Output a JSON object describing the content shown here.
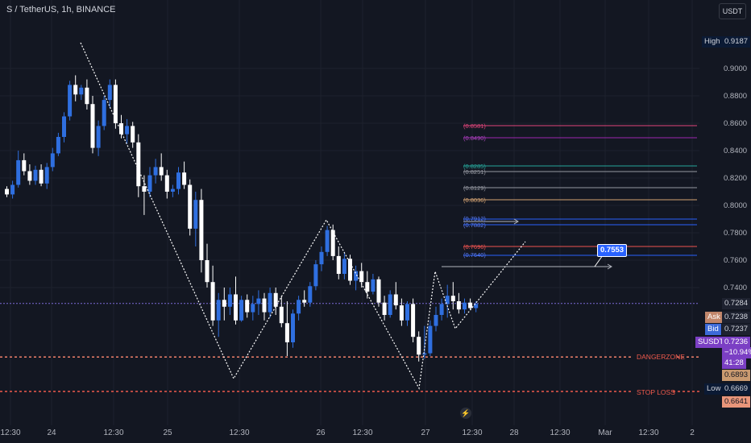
{
  "symbol": "S / TetherUS, 1h, BINANCE",
  "currency_button": "USDT",
  "colors": {
    "up": "#2f6fe0",
    "down": "#ffffff",
    "grid": "#1e222d",
    "pattern": "#ffffff",
    "current": "#7c6bd8",
    "danger": "#f0806b",
    "stoploss": "#f05a4c"
  },
  "y_axis": {
    "ticks": [
      "0.9000",
      "0.8800",
      "0.8600",
      "0.8400",
      "0.8200",
      "0.8000",
      "0.7800",
      "0.7600",
      "0.7400"
    ]
  },
  "x_axis": {
    "ticks": [
      "12:30",
      "24",
      "12:30",
      "25",
      "12:30",
      "26",
      "12:30",
      "27",
      "12:30",
      "28",
      "12:30",
      "Mar",
      "12:30",
      "2"
    ]
  },
  "price_tags": {
    "high_label": "High",
    "high_value": "0.9187",
    "last_value": "0.7284",
    "ask_label": "Ask",
    "ask_value": "0.7238",
    "bid_label": "Bid",
    "bid_value": "0.7237",
    "symbol_label": "SUSDT",
    "symbol_value": "0.7236",
    "change": "−10.94%",
    "countdown": "41:28",
    "danger_value": "0.6893",
    "low_label": "Low",
    "low_value": "0.6669",
    "stop_value": "0.6641"
  },
  "annotations": {
    "danger": "DANGERZONE",
    "stop": "STOP LOSS",
    "target": "0.7553"
  },
  "levels": [
    {
      "label": "(0.8581)",
      "color": "#e0457a"
    },
    {
      "label": "(0.8490)",
      "color": "#9c27b0"
    },
    {
      "label": "(0.8285)",
      "color": "#26a69a"
    },
    {
      "label": "(0.8251)",
      "color": "#9598a1"
    },
    {
      "label": "(0.8129)",
      "color": "#9598a1"
    },
    {
      "label": "(0.8036)",
      "color": "#d4a373"
    },
    {
      "label": "(0.7912)",
      "color": "#2962ff"
    },
    {
      "label": "(0.7882)",
      "color": "#2962ff"
    },
    {
      "label": "(0.7696)",
      "color": "#ef5350"
    },
    {
      "label": "(0.7640)",
      "color": "#2962ff"
    }
  ],
  "chart_data": {
    "type": "candlestick",
    "interval": "1h",
    "ylim": [
      0.6641,
      0.9187
    ],
    "ohlc": [
      [
        0.812,
        0.814,
        0.806,
        0.808
      ],
      [
        0.808,
        0.818,
        0.805,
        0.815
      ],
      [
        0.815,
        0.84,
        0.813,
        0.833
      ],
      [
        0.833,
        0.838,
        0.822,
        0.825
      ],
      [
        0.825,
        0.83,
        0.815,
        0.818
      ],
      [
        0.818,
        0.829,
        0.815,
        0.826
      ],
      [
        0.826,
        0.83,
        0.814,
        0.816
      ],
      [
        0.816,
        0.831,
        0.812,
        0.828
      ],
      [
        0.828,
        0.842,
        0.825,
        0.838
      ],
      [
        0.838,
        0.853,
        0.836,
        0.85
      ],
      [
        0.85,
        0.868,
        0.846,
        0.865
      ],
      [
        0.865,
        0.891,
        0.862,
        0.888
      ],
      [
        0.888,
        0.895,
        0.876,
        0.881
      ],
      [
        0.881,
        0.888,
        0.877,
        0.886
      ],
      [
        0.886,
        0.892,
        0.87,
        0.874
      ],
      [
        0.874,
        0.88,
        0.838,
        0.842
      ],
      [
        0.842,
        0.862,
        0.836,
        0.858
      ],
      [
        0.858,
        0.88,
        0.855,
        0.877
      ],
      [
        0.877,
        0.892,
        0.871,
        0.888
      ],
      [
        0.888,
        0.892,
        0.856,
        0.86
      ],
      [
        0.86,
        0.866,
        0.849,
        0.852
      ],
      [
        0.852,
        0.863,
        0.845,
        0.858
      ],
      [
        0.858,
        0.861,
        0.842,
        0.846
      ],
      [
        0.846,
        0.852,
        0.806,
        0.814
      ],
      [
        0.814,
        0.822,
        0.793,
        0.81
      ],
      [
        0.81,
        0.828,
        0.806,
        0.822
      ],
      [
        0.822,
        0.834,
        0.816,
        0.828
      ],
      [
        0.828,
        0.838,
        0.818,
        0.822
      ],
      [
        0.822,
        0.826,
        0.805,
        0.81
      ],
      [
        0.81,
        0.815,
        0.806,
        0.812
      ],
      [
        0.812,
        0.828,
        0.808,
        0.824
      ],
      [
        0.824,
        0.832,
        0.812,
        0.815
      ],
      [
        0.815,
        0.819,
        0.778,
        0.783
      ],
      [
        0.783,
        0.81,
        0.77,
        0.804
      ],
      [
        0.804,
        0.812,
        0.751,
        0.76
      ],
      [
        0.76,
        0.772,
        0.74,
        0.744
      ],
      [
        0.744,
        0.756,
        0.712,
        0.716
      ],
      [
        0.716,
        0.736,
        0.704,
        0.731
      ],
      [
        0.731,
        0.74,
        0.716,
        0.726
      ],
      [
        0.726,
        0.74,
        0.72,
        0.735
      ],
      [
        0.735,
        0.748,
        0.713,
        0.716
      ],
      [
        0.716,
        0.734,
        0.715,
        0.731
      ],
      [
        0.731,
        0.735,
        0.718,
        0.722
      ],
      [
        0.722,
        0.734,
        0.716,
        0.728
      ],
      [
        0.728,
        0.738,
        0.72,
        0.732
      ],
      [
        0.732,
        0.736,
        0.716,
        0.722
      ],
      [
        0.722,
        0.74,
        0.718,
        0.736
      ],
      [
        0.736,
        0.74,
        0.72,
        0.726
      ],
      [
        0.726,
        0.734,
        0.711,
        0.714
      ],
      [
        0.714,
        0.73,
        0.69,
        0.7
      ],
      [
        0.7,
        0.724,
        0.696,
        0.721
      ],
      [
        0.721,
        0.734,
        0.716,
        0.731
      ],
      [
        0.731,
        0.738,
        0.726,
        0.729
      ],
      [
        0.729,
        0.744,
        0.726,
        0.741
      ],
      [
        0.741,
        0.76,
        0.738,
        0.757
      ],
      [
        0.757,
        0.77,
        0.752,
        0.766
      ],
      [
        0.766,
        0.785,
        0.763,
        0.782
      ],
      [
        0.782,
        0.786,
        0.76,
        0.763
      ],
      [
        0.763,
        0.77,
        0.746,
        0.75
      ],
      [
        0.75,
        0.766,
        0.746,
        0.761
      ],
      [
        0.761,
        0.764,
        0.742,
        0.745
      ],
      [
        0.745,
        0.756,
        0.738,
        0.752
      ],
      [
        0.752,
        0.758,
        0.74,
        0.744
      ],
      [
        0.744,
        0.752,
        0.732,
        0.737
      ],
      [
        0.737,
        0.75,
        0.735,
        0.746
      ],
      [
        0.746,
        0.748,
        0.726,
        0.729
      ],
      [
        0.729,
        0.734,
        0.716,
        0.72
      ],
      [
        0.72,
        0.738,
        0.718,
        0.735
      ],
      [
        0.735,
        0.744,
        0.724,
        0.727
      ],
      [
        0.727,
        0.732,
        0.712,
        0.716
      ],
      [
        0.716,
        0.73,
        0.712,
        0.728
      ],
      [
        0.728,
        0.732,
        0.7,
        0.704
      ],
      [
        0.704,
        0.708,
        0.686,
        0.691
      ],
      [
        0.691,
        0.712,
        0.688,
        0.692
      ],
      [
        0.692,
        0.716,
        0.69,
        0.712
      ],
      [
        0.712,
        0.726,
        0.708,
        0.72
      ],
      [
        0.72,
        0.732,
        0.716,
        0.728
      ],
      [
        0.728,
        0.742,
        0.718,
        0.734
      ],
      [
        0.734,
        0.744,
        0.724,
        0.73
      ],
      [
        0.73,
        0.736,
        0.721,
        0.724
      ],
      [
        0.724,
        0.732,
        0.721,
        0.729
      ],
      [
        0.729,
        0.732,
        0.724,
        0.725
      ],
      [
        0.725,
        0.73,
        0.722,
        0.728
      ]
    ]
  }
}
